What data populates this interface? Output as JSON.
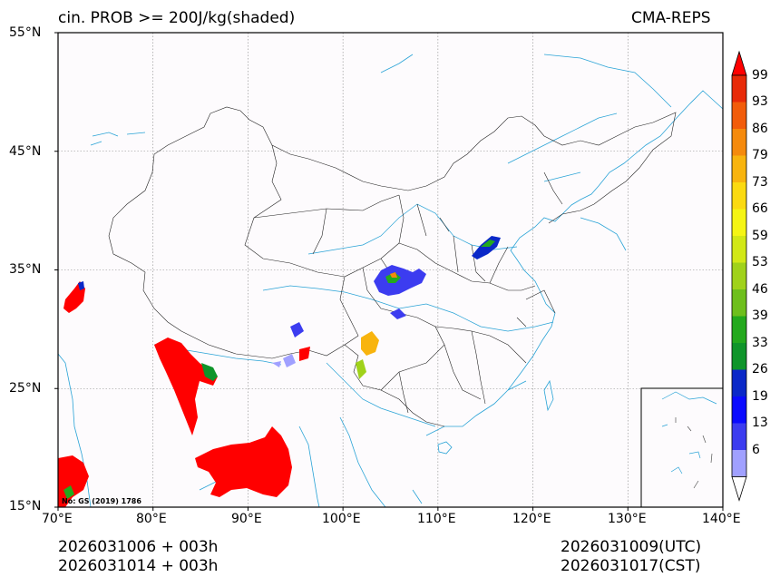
{
  "header": {
    "title_left": "cin. PROB >= 200J/kg(shaded)",
    "title_right": "CMA-REPS"
  },
  "axes": {
    "lon_ticks": [
      "70°E",
      "80°E",
      "90°E",
      "100°E",
      "110°E",
      "120°E",
      "130°E",
      "140°E"
    ],
    "lat_ticks": [
      "55°N",
      "45°N",
      "35°N",
      "25°N",
      "15°N"
    ],
    "lon_range": [
      70,
      140
    ],
    "lat_range": [
      15,
      55
    ]
  },
  "map": {
    "review_number": "No: GS (2019) 1786",
    "colors": {
      "coast_rivers": "#29a3d6",
      "borders": "#222222",
      "grid": "#888888",
      "background": "#fdfbfd"
    }
  },
  "colorbar": {
    "labels": [
      "99",
      "93",
      "86",
      "79",
      "73",
      "66",
      "59",
      "53",
      "46",
      "39",
      "33",
      "26",
      "19",
      "13",
      "6"
    ],
    "colors": [
      "#ff0000",
      "#e82a08",
      "#f25c0a",
      "#f58a0c",
      "#f8b40e",
      "#fbda10",
      "#f5f514",
      "#d2e816",
      "#a0d21a",
      "#6ebf1c",
      "#23a91d",
      "#0f952a",
      "#0a28c8",
      "#0a0aff",
      "#3c3cf0",
      "#a0a0ff"
    ]
  },
  "footer": {
    "init_utc": "2026031006  +  003h",
    "init_cst": "2026031014  +  003h",
    "valid_utc": "2026031009(UTC)",
    "valid_cst": "2026031017(CST)"
  }
}
